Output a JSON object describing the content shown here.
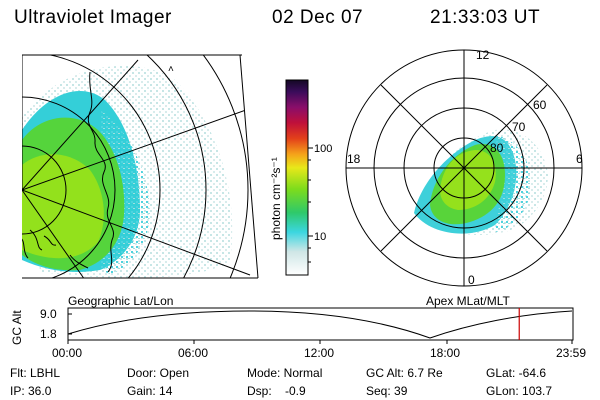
{
  "header": {
    "instrument": "Ultraviolet Imager",
    "date": "02 Dec 07",
    "time": "21:33:03 UT"
  },
  "colorbar": {
    "unit_label": "photon cm⁻²s⁻¹",
    "ticks": [
      "100",
      "10"
    ],
    "scale": "log"
  },
  "left_panel": {
    "caption": "Geographic Lat/Lon"
  },
  "right_panel": {
    "caption": "Apex  MLat/MLT",
    "mlt_labels": [
      "12",
      "18",
      "6",
      "0"
    ],
    "lat_labels": [
      "60",
      "70",
      "80"
    ]
  },
  "timeline": {
    "ylabel": "GC Alt",
    "yticks": [
      "9.0",
      "1.8"
    ],
    "xticks": [
      "00:00",
      "06:00",
      "12:00",
      "18:00",
      "23:59"
    ],
    "current_time_fraction": 0.8953,
    "marker_color": "#cc0000"
  },
  "info_rows": [
    [
      "Flt: LBHL",
      "Door: Open",
      "Mode: Normal",
      "GC Alt: 6.7 Re",
      "GLat: -64.6"
    ],
    [
      "IP: 36.0",
      "Gain: 14",
      "Dsp:    -0.9",
      "Seq: 39",
      "GLon: 103.7"
    ]
  ],
  "colors": {
    "bright_green": "#8fe01a",
    "green": "#3ed14e",
    "cyan": "#2ad8e0",
    "pale": "#cfe8e4"
  }
}
